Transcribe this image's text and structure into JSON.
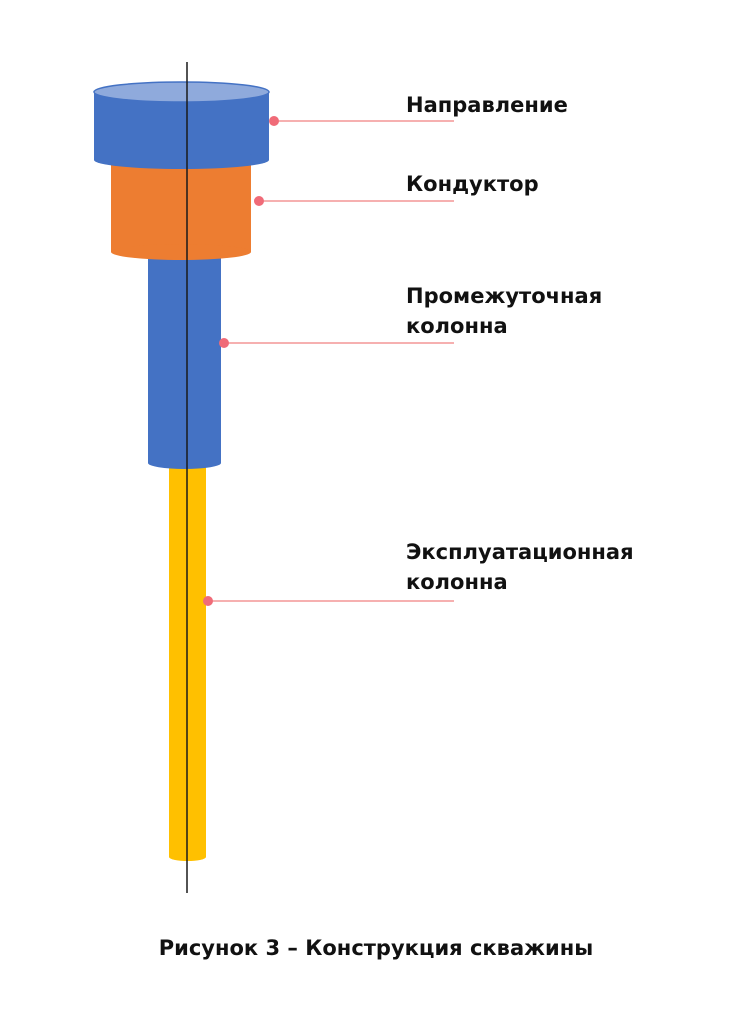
{
  "labels": {
    "napravlenie": "Направление",
    "konduktor": "Кондуктор",
    "promezhutochnaya_line1": "Промежуточная",
    "promezhutochnaya_line2": "колонна",
    "ekspluatatsionnaya_line1": "Эксплуатационная",
    "ekspluatatsionnaya_line2": "колонна"
  },
  "caption": "Рисунок 3 – Конструкция скважины",
  "colors": {
    "napravlenie": "#4472C4",
    "napravlenie_top": "#8FAADC",
    "konduktor": "#ED7D31",
    "promezhutochnaya": "#4472C4",
    "ekspluatatsionnaya": "#FFC000",
    "leader_line": "#F08080",
    "leader_dot": "#F06B78",
    "axis": "#1a1a1a"
  }
}
